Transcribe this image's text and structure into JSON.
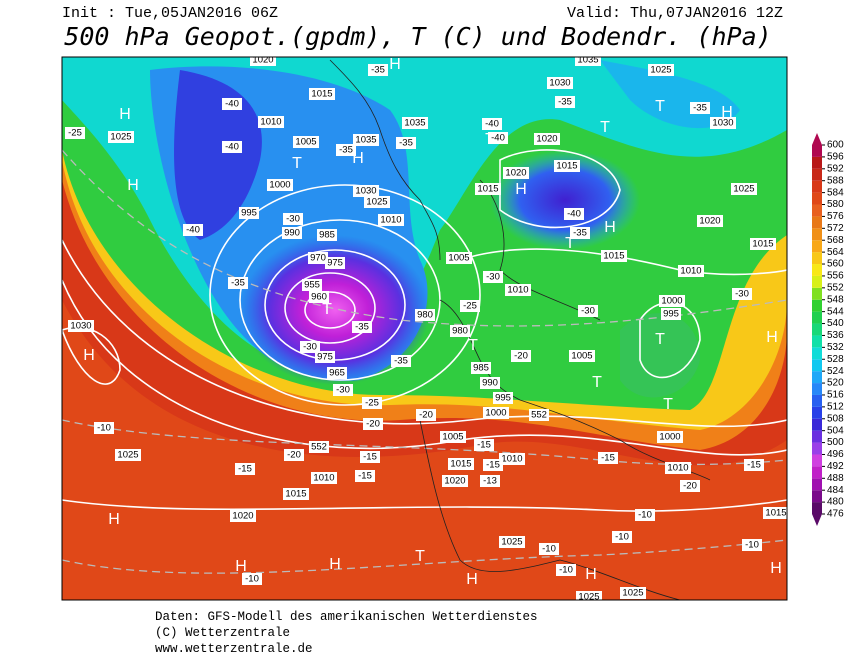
{
  "header": {
    "init": "Init : Tue,05JAN2016 06Z",
    "valid": "Valid: Thu,07JAN2016 12Z",
    "title": "500 hPa Geopot.(gpdm), T (C) und Bodendr. (hPa)"
  },
  "colorbar": {
    "ticks": [
      476,
      480,
      484,
      488,
      492,
      496,
      500,
      504,
      508,
      512,
      516,
      520,
      524,
      528,
      532,
      536,
      540,
      544,
      548,
      552,
      556,
      560,
      564,
      568,
      572,
      576,
      580,
      584,
      588,
      592,
      596,
      600
    ],
    "colors": [
      "#5a0a68",
      "#7a0a8a",
      "#a010b0",
      "#c020c8",
      "#d040e0",
      "#9a40e8",
      "#6a30e0",
      "#3a28d8",
      "#2840e8",
      "#2860f0",
      "#2888f8",
      "#20a8f8",
      "#10c8f0",
      "#10dcd8",
      "#10e0a8",
      "#18d878",
      "#20d050",
      "#30d030",
      "#80e020",
      "#d8f018",
      "#f8e818",
      "#f8c818",
      "#f8a818",
      "#f09018",
      "#e87818",
      "#e86020",
      "#e04818",
      "#d83818",
      "#c82818",
      "#b81818",
      "#b00850"
    ]
  },
  "map": {
    "labels": [
      "1020",
      "H",
      "-35",
      "1035",
      "1025",
      "1030",
      "-35",
      "T",
      "-35",
      "H",
      "1030",
      "H",
      "-40",
      "1010",
      "1015",
      "1035",
      "-40",
      "T",
      "1025",
      "-25",
      "-40",
      "1005",
      "1035",
      "-35",
      "1020",
      "-40",
      "T",
      "H",
      "T",
      "-35",
      "1015",
      "1020",
      "H",
      "1000",
      "1015",
      "H",
      "1030",
      "1025",
      "1025",
      "995",
      "-30",
      "1010",
      "-40",
      "H",
      "1020",
      "990",
      "985",
      "-40",
      "-35",
      "T",
      "1015",
      "1005",
      "1015",
      "975",
      "970",
      "-30",
      "1010",
      "-35",
      "955",
      "960",
      "1010",
      "1000",
      "-30",
      "T",
      "-35",
      "980",
      "995",
      "-30",
      "-25",
      "1030",
      "980",
      "T",
      "T",
      "H",
      "H",
      "-30",
      "975",
      "-35",
      "-20",
      "1005",
      "985",
      "965",
      "990",
      "T",
      "-30",
      "-25",
      "995",
      "-20",
      "1000",
      "552",
      "T",
      "-20",
      "-10",
      "1005",
      "1000",
      "-15",
      "1025",
      "-20",
      "552",
      "-15",
      "1010",
      "-15",
      "1015",
      "-15",
      "1010",
      "-15",
      "-15",
      "1010",
      "-15",
      "1020",
      "-13",
      "-20",
      "1015",
      "1020",
      "H",
      "1015",
      "-10",
      "-10",
      "1025",
      "-10",
      "T",
      "-10",
      "H",
      "H",
      "-10",
      "H",
      "H",
      "-10",
      "H",
      "1025",
      "1025"
    ]
  },
  "footer": {
    "lines": [
      "Daten: GFS-Modell des amerikanischen Wetterdienstes",
      "(C) Wetterzentrale",
      "www.wetterzentrale.de"
    ]
  }
}
